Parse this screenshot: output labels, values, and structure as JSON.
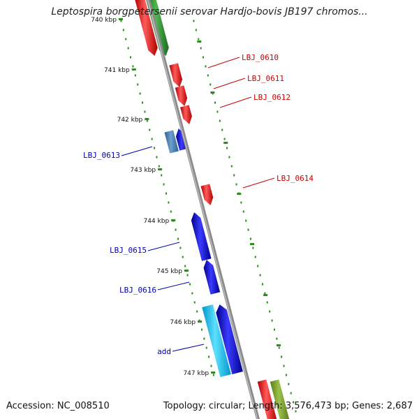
{
  "title": "Leptospira borgpetersenii serovar Hardjo-bovis JB197 chromos...",
  "footer": {
    "accession": "Accession: NC_008510",
    "summary": "Topology: circular; Length: 3,576,473 bp; Genes: 2,687"
  },
  "colors": {
    "backbone": "#8a8a8a",
    "tick": "#2e8b1f",
    "forward_label": "#cc0000",
    "reverse_label": "#0000aa"
  },
  "kbp_labels": [
    "740 kbp",
    "741 kbp",
    "742 kbp",
    "743 kbp",
    "744 kbp",
    "745 kbp",
    "746 kbp",
    "747 kbp"
  ],
  "genes": [
    {
      "label": "LBJ_0610",
      "strand": "forward",
      "color": "#ff0000"
    },
    {
      "label": "LBJ_0611",
      "strand": "forward",
      "color": "#ff0000"
    },
    {
      "label": "LBJ_0612",
      "strand": "forward",
      "color": "#ff0000"
    },
    {
      "label": "LBJ_0613",
      "strand": "reverse",
      "color": "#0000ff"
    },
    {
      "label": "LBJ_0614",
      "strand": "forward",
      "color": "#ff0000"
    },
    {
      "label": "LBJ_0615",
      "strand": "reverse",
      "color": "#0000ff"
    },
    {
      "label": "LBJ_0616",
      "strand": "reverse",
      "color": "#0000ff"
    },
    {
      "label": "add",
      "strand": "reverse",
      "color": "#0000ff"
    }
  ]
}
